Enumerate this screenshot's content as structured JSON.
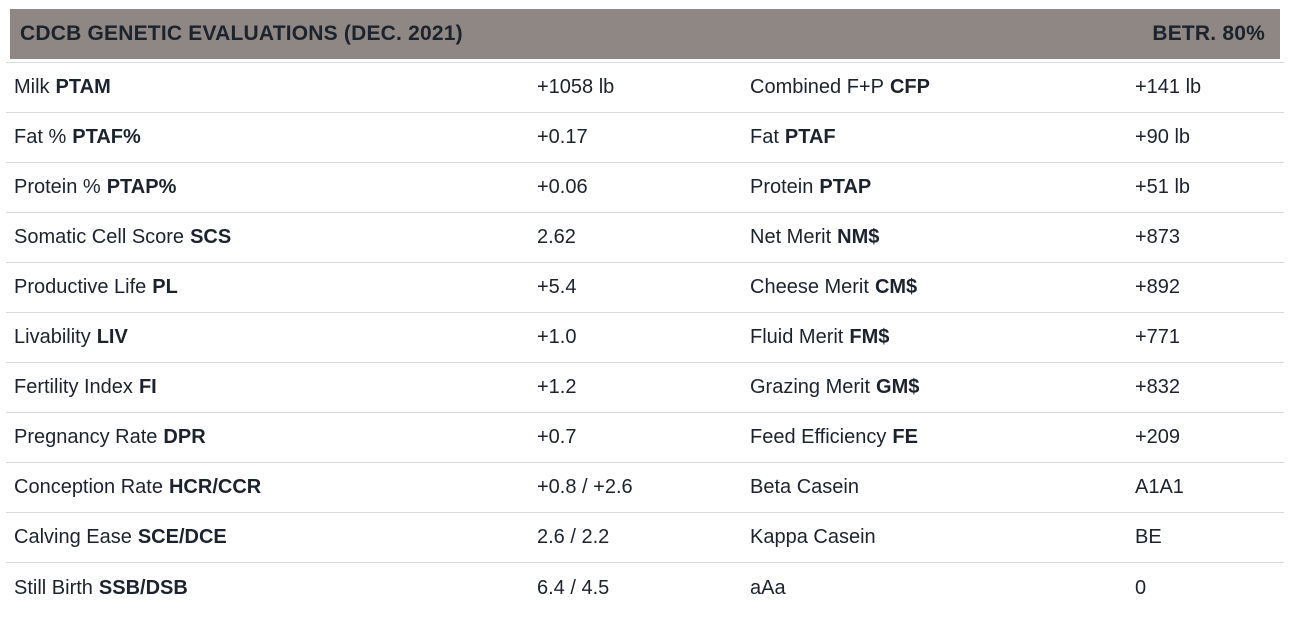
{
  "header": {
    "title": "CDCB GENETIC EVALUATIONS (DEC. 2021)",
    "reliability": "BETR. 80%"
  },
  "colors": {
    "header_bg": "#8e8783",
    "text": "#1c232c",
    "divider": "#d8dbde",
    "background": "#ffffff"
  },
  "rows": [
    {
      "l_label": "Milk",
      "l_code": "PTAM",
      "l_value": "+1058 lb",
      "r_label": "Combined F+P",
      "r_code": "CFP",
      "r_value": "+141 lb"
    },
    {
      "l_label": "Fat %",
      "l_code": "PTAF%",
      "l_value": "+0.17",
      "r_label": "Fat",
      "r_code": "PTAF",
      "r_value": "+90 lb"
    },
    {
      "l_label": "Protein %",
      "l_code": "PTAP%",
      "l_value": "+0.06",
      "r_label": "Protein",
      "r_code": "PTAP",
      "r_value": "+51 lb"
    },
    {
      "l_label": "Somatic Cell Score",
      "l_code": "SCS",
      "l_value": "2.62",
      "r_label": "Net Merit",
      "r_code": "NM$",
      "r_value": "+873"
    },
    {
      "l_label": "Productive Life",
      "l_code": "PL",
      "l_value": "+5.4",
      "r_label": "Cheese Merit",
      "r_code": "CM$",
      "r_value": "+892"
    },
    {
      "l_label": "Livability",
      "l_code": "LIV",
      "l_value": "+1.0",
      "r_label": "Fluid Merit",
      "r_code": "FM$",
      "r_value": "+771"
    },
    {
      "l_label": "Fertility Index",
      "l_code": "FI",
      "l_value": "+1.2",
      "r_label": "Grazing Merit",
      "r_code": "GM$",
      "r_value": "+832"
    },
    {
      "l_label": "Pregnancy Rate",
      "l_code": "DPR",
      "l_value": "+0.7",
      "r_label": "Feed Efficiency",
      "r_code": "FE",
      "r_value": "+209"
    },
    {
      "l_label": "Conception Rate",
      "l_code": "HCR/CCR",
      "l_value": "+0.8 / +2.6",
      "r_label": "Beta Casein",
      "r_code": "",
      "r_value": "A1A1"
    },
    {
      "l_label": "Calving Ease",
      "l_code": "SCE/DCE",
      "l_value": "2.6 / 2.2",
      "r_label": "Kappa Casein",
      "r_code": "",
      "r_value": "BE"
    },
    {
      "l_label": "Still Birth",
      "l_code": "SSB/DSB",
      "l_value": "6.4 / 4.5",
      "r_label": "aAa",
      "r_code": "",
      "r_value": "0"
    }
  ]
}
